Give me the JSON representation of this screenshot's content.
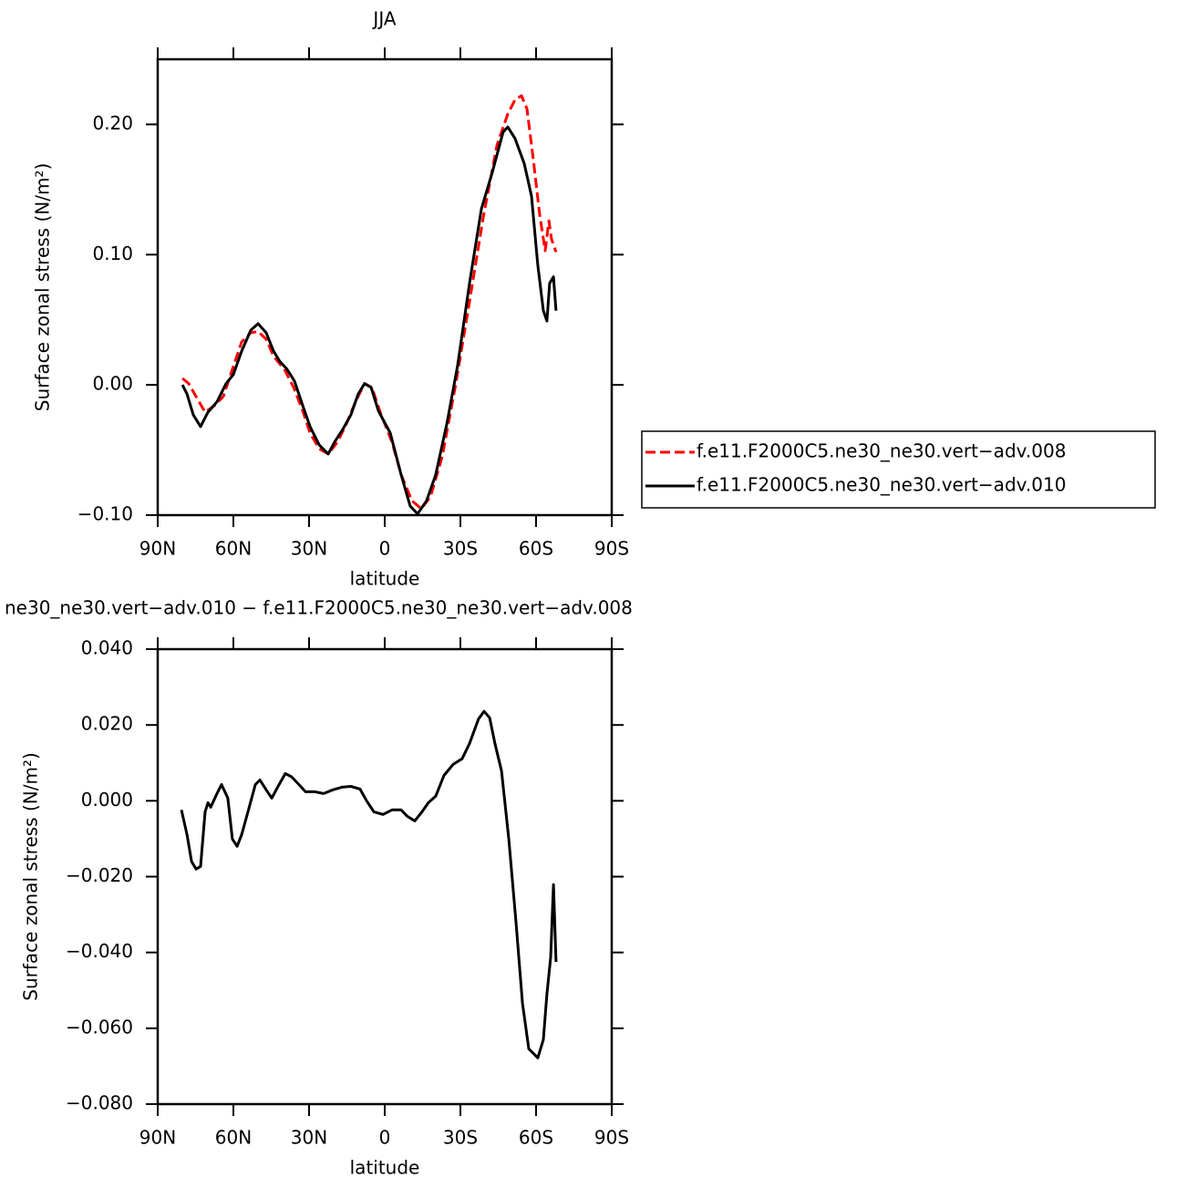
{
  "chart_data": [
    {
      "type": "line",
      "title": "JJA",
      "xlabel": "latitude",
      "ylabel": "Surface zonal stress (N/m²)",
      "xlim": [
        90,
        -90
      ],
      "xticks": [
        {
          "value": 90,
          "label": "90N"
        },
        {
          "value": 60,
          "label": "60N"
        },
        {
          "value": 30,
          "label": "30N"
        },
        0,
        {
          "value": -30,
          "label": "30S"
        },
        {
          "value": -60,
          "label": "60S"
        },
        {
          "value": -90,
          "label": "90S"
        }
      ],
      "ylim": [
        -0.1,
        0.25
      ],
      "yticks": [
        {
          "value": -0.1,
          "label": "−0.10"
        },
        {
          "value": 0,
          "label": "0.00"
        },
        {
          "value": 0.1,
          "label": "0.10"
        },
        {
          "value": 0.2,
          "label": "0.20"
        }
      ],
      "series": [
        {
          "name": "f.e11.F2000C5.ne30_ne30.vert−adv.008",
          "color": "#ff0000",
          "dashed": true,
          "x": [
            80.2,
            77.7,
            74.8,
            71.2,
            67.6,
            64,
            60.4,
            56.7,
            53.1,
            50.2,
            47,
            44.1,
            39.8,
            36.1,
            32.5,
            29.6,
            26,
            22.4,
            18.8,
            15.2,
            11.6,
            8,
            5.1,
            1.4,
            -2.9,
            -6.5,
            -10.8,
            -14.5,
            -18.1,
            -22.8,
            -28.2,
            -33.6,
            -39,
            -44.5,
            -48.8,
            -51.7,
            -54.2,
            -56.4,
            -58.9,
            -61.4,
            -63.6,
            -65.1,
            -66.1,
            -67.9
          ],
          "values": [
            0.005,
            0.001,
            -0.009,
            -0.021,
            -0.016,
            -0.009,
            0.012,
            0.033,
            0.04,
            0.041,
            0.035,
            0.022,
            0.012,
            -0.002,
            -0.02,
            -0.037,
            -0.049,
            -0.053,
            -0.044,
            -0.03,
            -0.013,
            0.001,
            -0.002,
            -0.023,
            -0.044,
            -0.069,
            -0.089,
            -0.095,
            -0.086,
            -0.055,
            0.001,
            0.064,
            0.128,
            0.184,
            0.208,
            0.219,
            0.222,
            0.212,
            0.173,
            0.131,
            0.103,
            0.126,
            0.112,
            0.102
          ]
        },
        {
          "name": "f.e11.F2000C5.ne30_ne30.vert−adv.010",
          "color": "#000000",
          "dashed": false,
          "x": [
            80.2,
            78.4,
            75.9,
            73,
            70.1,
            66.5,
            62.9,
            60,
            56.7,
            53.1,
            50.2,
            47,
            44.1,
            41.6,
            38.7,
            35.8,
            32.5,
            29.6,
            26,
            22.4,
            19.9,
            16.6,
            13.4,
            10.5,
            8,
            5.4,
            2.5,
            -2.2,
            -6.5,
            -10.1,
            -13,
            -16.6,
            -20.2,
            -24.6,
            -28.9,
            -33.6,
            -38.3,
            -42.6,
            -46.9,
            -48.8,
            -51.7,
            -55.3,
            -58.2,
            -60.7,
            -62.9,
            -64.3,
            -65.4,
            -66.9,
            -67.9
          ],
          "values": [
            0.0,
            -0.007,
            -0.023,
            -0.032,
            -0.021,
            -0.013,
            0.001,
            0.008,
            0.026,
            0.042,
            0.047,
            0.04,
            0.026,
            0.018,
            0.012,
            0.003,
            -0.016,
            -0.032,
            -0.046,
            -0.053,
            -0.044,
            -0.034,
            -0.023,
            -0.007,
            0.001,
            -0.002,
            -0.02,
            -0.037,
            -0.069,
            -0.093,
            -0.099,
            -0.089,
            -0.069,
            -0.03,
            0.015,
            0.078,
            0.135,
            0.163,
            0.194,
            0.198,
            0.189,
            0.17,
            0.145,
            0.092,
            0.057,
            0.049,
            0.078,
            0.083,
            0.057
          ]
        }
      ]
    },
    {
      "type": "line",
      "title": "ne30_ne30.vert−adv.010 − f.e11.F2000C5.ne30_ne30.vert−adv.008",
      "xlabel": "latitude",
      "ylabel": "Surface zonal stress (N/m²)",
      "xlim": [
        90,
        -90
      ],
      "xticks": [
        {
          "value": 90,
          "label": "90N"
        },
        {
          "value": 60,
          "label": "60N"
        },
        {
          "value": 30,
          "label": "30N"
        },
        0,
        {
          "value": -30,
          "label": "30S"
        },
        {
          "value": -60,
          "label": "60S"
        },
        {
          "value": -90,
          "label": "90S"
        }
      ],
      "ylim": [
        -0.08,
        0.04
      ],
      "yticks": [
        {
          "value": -0.08,
          "label": "−0.080"
        },
        {
          "value": -0.06,
          "label": "−0.060"
        },
        {
          "value": -0.04,
          "label": "−0.040"
        },
        {
          "value": -0.02,
          "label": "−0.020"
        },
        {
          "value": 0,
          "label": "0.000"
        },
        {
          "value": 0.02,
          "label": "0.020"
        },
        {
          "value": 0.04,
          "label": "0.040"
        }
      ],
      "color": "#000000",
      "x": [
        80.6,
        78.4,
        76.6,
        74.8,
        73,
        71.2,
        70.1,
        69,
        66.5,
        64.7,
        62.2,
        60.4,
        58.5,
        56.7,
        54.2,
        51.3,
        49.5,
        47,
        44.8,
        42.3,
        39.4,
        36.9,
        34,
        31.4,
        27.8,
        24.2,
        20.6,
        17,
        13.4,
        9.8,
        7.2,
        4.3,
        0.7,
        -2.9,
        -6.5,
        -9,
        -11.9,
        -14.8,
        -17.3,
        -20.2,
        -23.5,
        -27.1,
        -30.7,
        -33.6,
        -37.2,
        -39.4,
        -41.6,
        -43.7,
        -46.3,
        -49.2,
        -52,
        -54.6,
        -57.1,
        -58.9,
        -60.7,
        -62.9,
        -64.3,
        -65.8,
        -66.9,
        -67.9
      ],
      "values": [
        -0.0024,
        -0.0089,
        -0.016,
        -0.018,
        -0.0173,
        -0.0029,
        -0.0005,
        -0.0017,
        0.0019,
        0.0043,
        0.0007,
        -0.0101,
        -0.012,
        -0.0089,
        -0.0029,
        0.0043,
        0.0055,
        0.0029,
        0.0007,
        0.0038,
        0.0072,
        0.0063,
        0.0043,
        0.0024,
        0.0024,
        0.0019,
        0.0029,
        0.0036,
        0.0038,
        0.0031,
        0.0,
        -0.0029,
        -0.0036,
        -0.0024,
        -0.0024,
        -0.0041,
        -0.0053,
        -0.0029,
        -0.0005,
        0.0012,
        0.0067,
        0.0096,
        0.0111,
        0.0151,
        0.0216,
        0.0236,
        0.0219,
        0.0151,
        0.0079,
        -0.0101,
        -0.0317,
        -0.0534,
        -0.0654,
        -0.0666,
        -0.0678,
        -0.063,
        -0.051,
        -0.0413,
        -0.0221,
        -0.0425
      ]
    }
  ]
}
